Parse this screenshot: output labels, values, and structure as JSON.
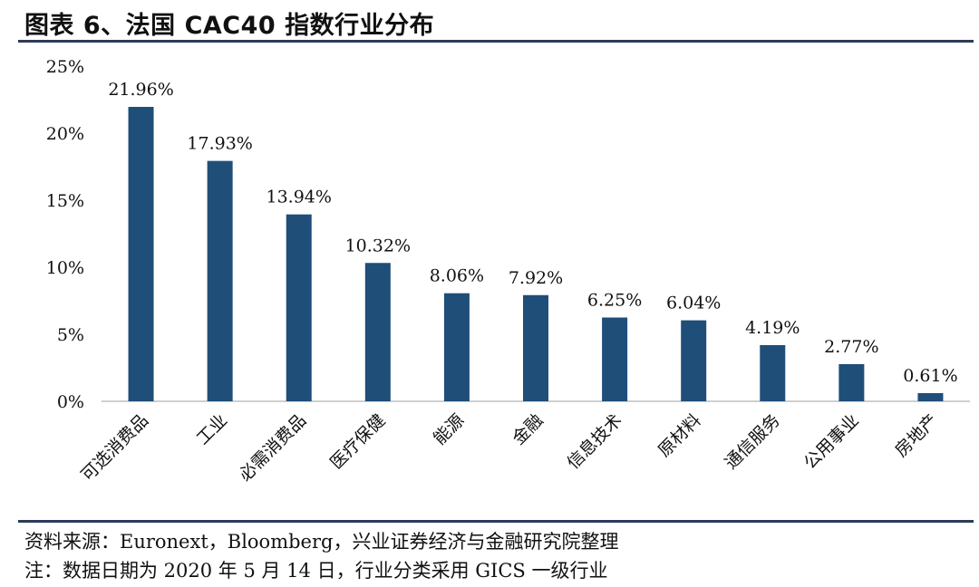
{
  "header": {
    "title": "图表 6、法国 CAC40 指数行业分布"
  },
  "chart_data": {
    "type": "bar",
    "categories": [
      "可选消费品",
      "工业",
      "必需消费品",
      "医疗保健",
      "能源",
      "金融",
      "信息技术",
      "原材料",
      "通信服务",
      "公用事业",
      "房地产"
    ],
    "values": [
      21.96,
      17.93,
      13.94,
      10.32,
      8.06,
      7.92,
      6.25,
      6.04,
      4.19,
      2.77,
      0.61
    ],
    "data_labels": [
      "21.96%",
      "17.93%",
      "13.94%",
      "10.32%",
      "8.06%",
      "7.92%",
      "6.25%",
      "6.04%",
      "4.19%",
      "2.77%",
      "0.61%"
    ],
    "ylim": [
      0,
      25
    ],
    "yticks": [
      "0%",
      "5%",
      "10%",
      "15%",
      "20%",
      "25%"
    ],
    "bar_color": "#1f4e79",
    "grid": false
  },
  "footer": {
    "source": "资料来源：Euronext，Bloomberg，兴业证券经济与金融研究院整理",
    "note": "注：数据日期为 2020 年 5 月 14 日，行业分类采用 GICS 一级行业"
  }
}
